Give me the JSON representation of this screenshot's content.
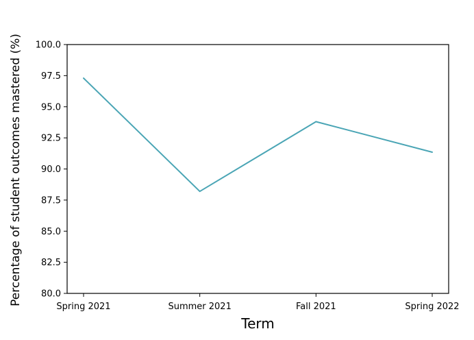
{
  "chart_data": {
    "type": "line",
    "title": "",
    "xlabel": "Term",
    "ylabel": "Percentage of student outcomes mastered (%)",
    "categories": [
      "Spring 2021",
      "Summer 2021",
      "Fall 2021",
      "Spring 2022"
    ],
    "series": [
      {
        "values": [
          97.3,
          88.2,
          93.8,
          91.35
        ],
        "color": "#4aa5b5"
      }
    ],
    "ylim": [
      80.0,
      100.0
    ],
    "yticks": [
      "80.0",
      "82.5",
      "85.0",
      "87.5",
      "90.0",
      "92.5",
      "95.0",
      "97.5",
      "100.0"
    ],
    "grid": false,
    "legend": "none"
  }
}
